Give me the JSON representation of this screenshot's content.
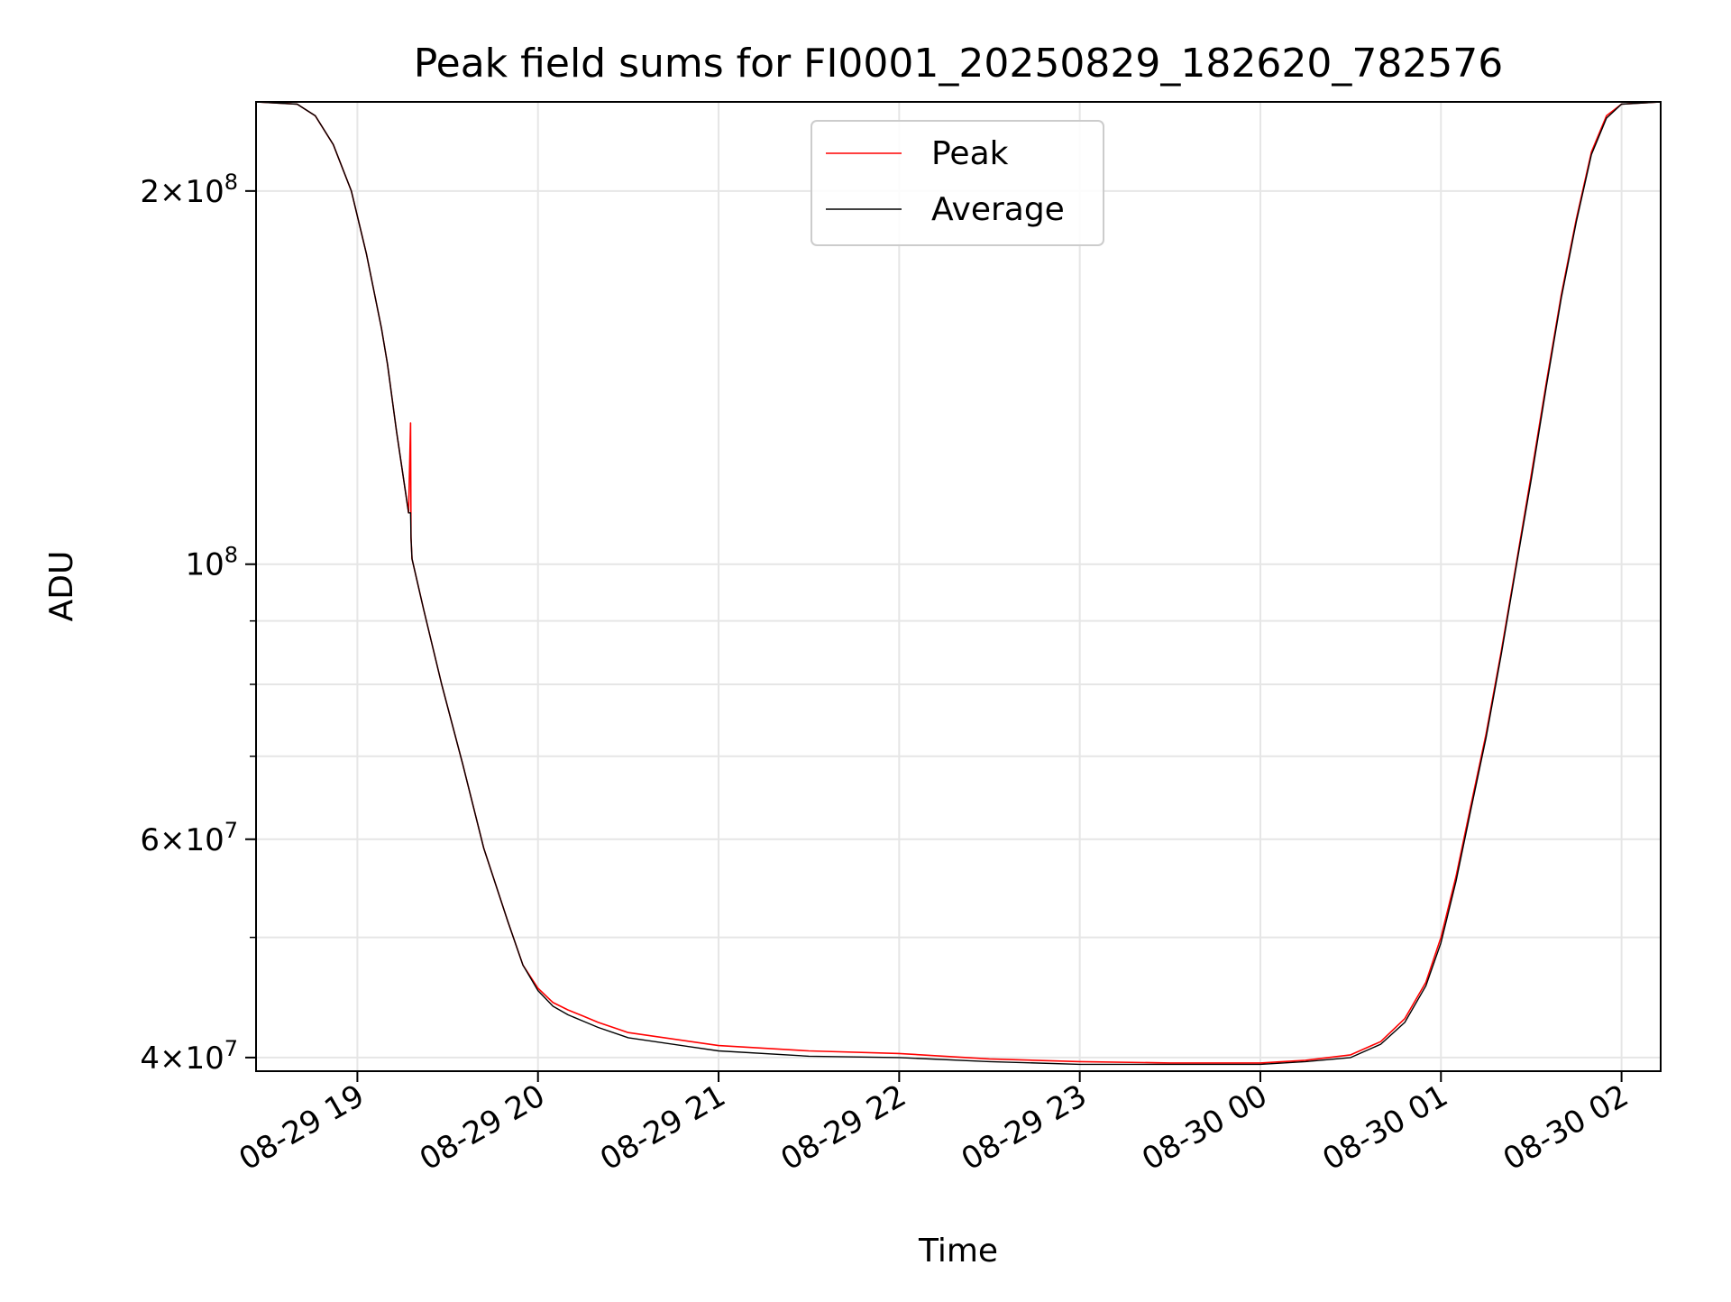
{
  "chart_data": {
    "type": "line",
    "title": "Peak field sums for FI0001_20250829_182620_782576",
    "xlabel": "Time",
    "ylabel": "ADU",
    "x_axis_type": "datetime",
    "xlim": [
      "2025-08-29 18:26:20",
      "2025-08-30 02:13:00"
    ],
    "ylim": [
      39000000,
      236000000
    ],
    "y_scale": "log",
    "grid": true,
    "legend_position": "top-center",
    "x_ticks": [
      {
        "value": "2025-08-29 19:00",
        "label": "08-29 19"
      },
      {
        "value": "2025-08-29 20:00",
        "label": "08-29 20"
      },
      {
        "value": "2025-08-29 21:00",
        "label": "08-29 21"
      },
      {
        "value": "2025-08-29 22:00",
        "label": "08-29 22"
      },
      {
        "value": "2025-08-29 23:00",
        "label": "08-29 23"
      },
      {
        "value": "2025-08-30 00:00",
        "label": "08-30 00"
      },
      {
        "value": "2025-08-30 01:00",
        "label": "08-30 01"
      },
      {
        "value": "2025-08-30 02:00",
        "label": "08-30 02"
      }
    ],
    "y_ticks_major": [
      {
        "value": 40000000,
        "base": "4",
        "exp": "7"
      },
      {
        "value": 60000000,
        "base": "6",
        "exp": "7"
      },
      {
        "value": 100000000,
        "base": "",
        "exp": "8"
      },
      {
        "value": 200000000,
        "base": "2",
        "exp": "8"
      }
    ],
    "y_ticks_minor": [
      50000000,
      70000000,
      80000000,
      90000000
    ],
    "series": [
      {
        "name": "Peak",
        "color": "#ff0000",
        "x": [
          "2025-08-29 18:26:20",
          "2025-08-29 18:40:00",
          "2025-08-29 18:46:00",
          "2025-08-29 18:52:00",
          "2025-08-29 18:58:00",
          "2025-08-29 19:03:00",
          "2025-08-29 19:08:00",
          "2025-08-29 19:10:00",
          "2025-08-29 19:13:00",
          "2025-08-29 19:17:00",
          "2025-08-29 19:17:40",
          "2025-08-29 19:17:50",
          "2025-08-29 19:18:10",
          "2025-08-29 19:22:00",
          "2025-08-29 19:28:00",
          "2025-08-29 19:35:00",
          "2025-08-29 19:42:00",
          "2025-08-29 19:50:00",
          "2025-08-29 19:55:00",
          "2025-08-29 20:00:00",
          "2025-08-29 20:05:00",
          "2025-08-29 20:10:00",
          "2025-08-29 20:15:00",
          "2025-08-29 20:20:00",
          "2025-08-29 20:30:00",
          "2025-08-29 21:00:00",
          "2025-08-29 21:30:00",
          "2025-08-29 22:00:00",
          "2025-08-29 22:30:00",
          "2025-08-29 23:00:00",
          "2025-08-29 23:30:00",
          "2025-08-30 00:00:00",
          "2025-08-30 00:15:00",
          "2025-08-30 00:30:00",
          "2025-08-30 00:40:00",
          "2025-08-30 00:48:00",
          "2025-08-30 00:55:00",
          "2025-08-30 01:00:00",
          "2025-08-30 01:05:00",
          "2025-08-30 01:10:00",
          "2025-08-30 01:15:00",
          "2025-08-30 01:20:00",
          "2025-08-30 01:25:00",
          "2025-08-30 01:30:00",
          "2025-08-30 01:35:00",
          "2025-08-30 01:40:00",
          "2025-08-30 01:45:00",
          "2025-08-30 01:50:00",
          "2025-08-30 01:55:00",
          "2025-08-30 02:00:00",
          "2025-08-30 02:13:00"
        ],
        "values": [
          236000000,
          235000000,
          230000000,
          218000000,
          200000000,
          178000000,
          155000000,
          145000000,
          128000000,
          110000000,
          130000000,
          105000000,
          101000000,
          92000000,
          80000000,
          69000000,
          59000000,
          51500000,
          47500000,
          45500000,
          44300000,
          43700000,
          43200000,
          42700000,
          41900000,
          40900000,
          40500000,
          40300000,
          39900000,
          39700000,
          39600000,
          39600000,
          39800000,
          40200000,
          41200000,
          43000000,
          46000000,
          50000000,
          56000000,
          64000000,
          73000000,
          85000000,
          100000000,
          118000000,
          140000000,
          165000000,
          190000000,
          215000000,
          230000000,
          235000000,
          236000000
        ]
      },
      {
        "name": "Average",
        "color": "#000000",
        "x": [
          "2025-08-29 18:26:20",
          "2025-08-29 18:40:00",
          "2025-08-29 18:46:00",
          "2025-08-29 18:52:00",
          "2025-08-29 18:58:00",
          "2025-08-29 19:03:00",
          "2025-08-29 19:08:00",
          "2025-08-29 19:10:00",
          "2025-08-29 19:13:00",
          "2025-08-29 19:17:00",
          "2025-08-29 19:17:40",
          "2025-08-29 19:17:50",
          "2025-08-29 19:18:10",
          "2025-08-29 19:22:00",
          "2025-08-29 19:28:00",
          "2025-08-29 19:35:00",
          "2025-08-29 19:42:00",
          "2025-08-29 19:50:00",
          "2025-08-29 19:55:00",
          "2025-08-29 20:00:00",
          "2025-08-29 20:05:00",
          "2025-08-29 20:10:00",
          "2025-08-29 20:15:00",
          "2025-08-29 20:20:00",
          "2025-08-29 20:30:00",
          "2025-08-29 21:00:00",
          "2025-08-29 21:30:00",
          "2025-08-29 22:00:00",
          "2025-08-29 22:30:00",
          "2025-08-29 23:00:00",
          "2025-08-29 23:30:00",
          "2025-08-30 00:00:00",
          "2025-08-30 00:15:00",
          "2025-08-30 00:30:00",
          "2025-08-30 00:40:00",
          "2025-08-30 00:48:00",
          "2025-08-30 00:55:00",
          "2025-08-30 01:00:00",
          "2025-08-30 01:05:00",
          "2025-08-30 01:10:00",
          "2025-08-30 01:15:00",
          "2025-08-30 01:20:00",
          "2025-08-30 01:25:00",
          "2025-08-30 01:30:00",
          "2025-08-30 01:35:00",
          "2025-08-30 01:40:00",
          "2025-08-30 01:45:00",
          "2025-08-30 01:50:00",
          "2025-08-30 01:55:00",
          "2025-08-30 02:00:00",
          "2025-08-30 02:13:00"
        ],
        "values": [
          236000000,
          235000000,
          230000000,
          218000000,
          200000000,
          178000000,
          155000000,
          145000000,
          128000000,
          110000000,
          110000000,
          105000000,
          101000000,
          92000000,
          80000000,
          69000000,
          59000000,
          51500000,
          47500000,
          45300000,
          44000000,
          43300000,
          42800000,
          42300000,
          41500000,
          40500000,
          40100000,
          40000000,
          39700000,
          39500000,
          39500000,
          39500000,
          39700000,
          40000000,
          41000000,
          42700000,
          45700000,
          49500000,
          55500000,
          63500000,
          72500000,
          84500000,
          99500000,
          117000000,
          139000000,
          164000000,
          189000000,
          214000000,
          229000000,
          235000000,
          236000000
        ]
      }
    ]
  }
}
